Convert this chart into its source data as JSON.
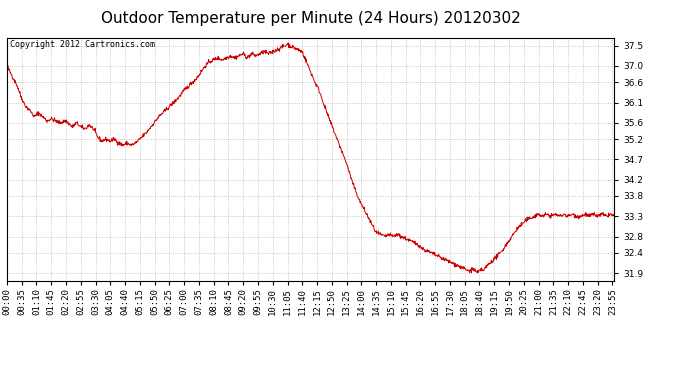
{
  "title": "Outdoor Temperature per Minute (24 Hours) 20120302",
  "copyright_text": "Copyright 2012 Cartronics.com",
  "line_color": "#cc0000",
  "background_color": "#ffffff",
  "grid_color": "#b0b0b0",
  "ylim": [
    31.7,
    37.7
  ],
  "yticks": [
    31.9,
    32.4,
    32.8,
    33.3,
    33.8,
    34.2,
    34.7,
    35.2,
    35.6,
    36.1,
    36.6,
    37.0,
    37.5
  ],
  "title_fontsize": 11,
  "tick_fontsize": 6.5,
  "copyright_fontsize": 6.0
}
